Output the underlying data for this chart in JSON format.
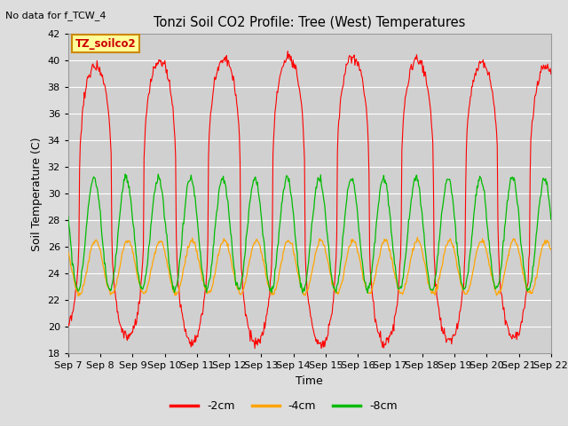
{
  "title": "Tonzi Soil CO2 Profile: Tree (West) Temperatures",
  "subtitle": "No data for f_TCW_4",
  "xlabel": "Time",
  "ylabel": "Soil Temperature (C)",
  "ylim": [
    18,
    42
  ],
  "yticks": [
    18,
    20,
    22,
    24,
    26,
    28,
    30,
    32,
    34,
    36,
    38,
    40,
    42
  ],
  "xtick_labels": [
    "Sep 7",
    "Sep 8",
    "Sep 9",
    "Sep 10",
    "Sep 11",
    "Sep 12",
    "Sep 13",
    "Sep 14",
    "Sep 15",
    "Sep 16",
    "Sep 17",
    "Sep 18",
    "Sep 19",
    "Sep 20",
    "Sep 21",
    "Sep 22"
  ],
  "legend_labels": [
    "-2cm",
    "-4cm",
    "-8cm"
  ],
  "legend_colors": [
    "#ff0000",
    "#ffa500",
    "#00bb00"
  ],
  "line_colors": [
    "#ff0000",
    "#ffa500",
    "#00bb00"
  ],
  "bg_color": "#dddddd",
  "plot_bg_color": "#d0d0d0",
  "inset_label": "TZ_soilco2",
  "inset_bg": "#ffff99",
  "inset_border": "#cc8800"
}
